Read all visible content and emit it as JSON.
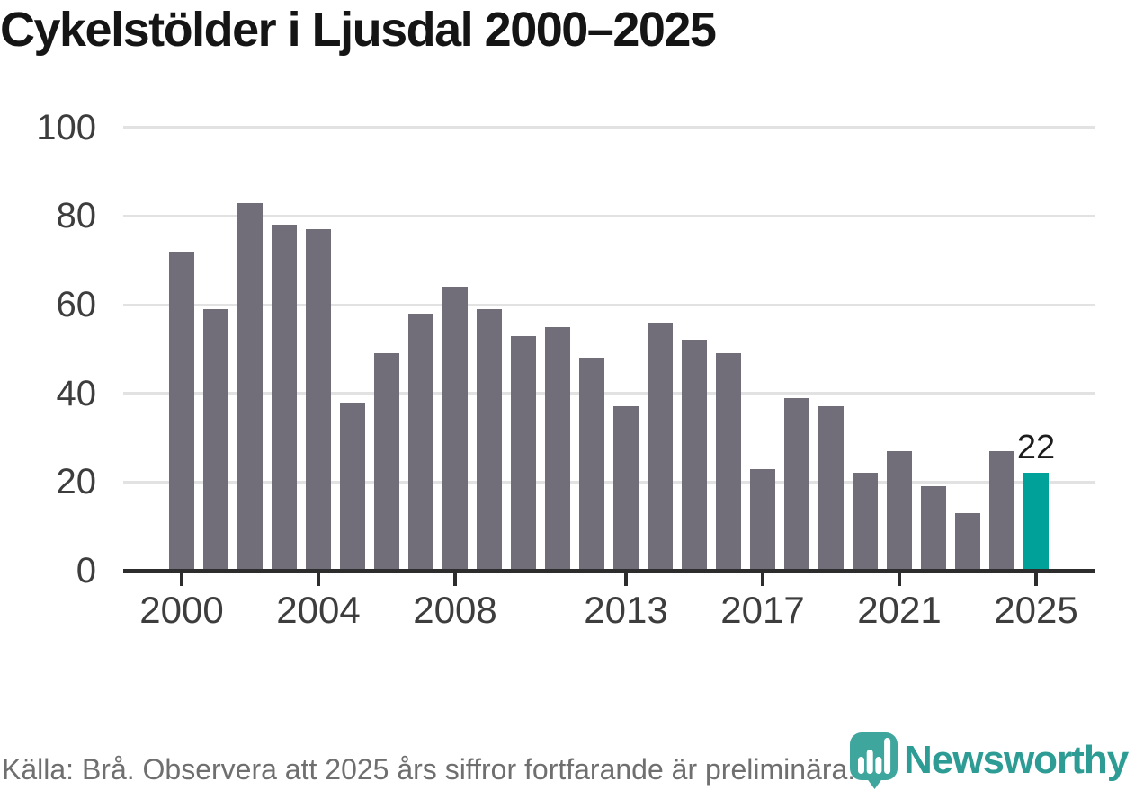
{
  "header": {
    "title": "Cykelstölder i Ljusdal 2000–2025"
  },
  "footer": {
    "source_note": "Källa: Brå. Observera att 2025 års siffror fortfarande är preliminära."
  },
  "logo": {
    "wordmark": "Newsworthy",
    "icon": "newsworthy-speech-bubble-bars-icon",
    "icon_color": "#3ea69d",
    "wordmark_color": "#2d9c94"
  },
  "colors": {
    "bar": "#716d79",
    "highlight": "#00a199",
    "grid": "#e2e2e2",
    "axis": "#2d2d2d",
    "tick_label": "#3d3d3d",
    "title": "#151515",
    "footer_text": "#6f6f6f",
    "data_label": "#1c1c1c",
    "background": "#ffffff"
  },
  "chart_data": {
    "type": "bar",
    "title": "Cykelstölder i Ljusdal 2000–2025",
    "xlabel": "",
    "ylabel": "",
    "categories": [
      2000,
      2001,
      2002,
      2003,
      2004,
      2005,
      2006,
      2007,
      2008,
      2009,
      2010,
      2011,
      2012,
      2013,
      2014,
      2015,
      2016,
      2017,
      2018,
      2019,
      2020,
      2021,
      2022,
      2023,
      2024,
      2025
    ],
    "values": [
      72,
      59,
      83,
      78,
      77,
      38,
      49,
      58,
      64,
      59,
      53,
      55,
      48,
      37,
      56,
      52,
      49,
      23,
      39,
      37,
      22,
      27,
      19,
      13,
      27,
      22
    ],
    "highlight_index": 25,
    "data_label": {
      "index": 25,
      "text": "22"
    },
    "y_ticks": [
      0,
      20,
      40,
      60,
      80,
      100
    ],
    "ylim": [
      0,
      100
    ],
    "x_tick_years": [
      2000,
      2004,
      2008,
      2013,
      2017,
      2021,
      2025
    ],
    "x_tick_labels": [
      "2000",
      "2004",
      "2008",
      "2013",
      "2017",
      "2021",
      "2025"
    ],
    "grid": true,
    "legend": false
  }
}
